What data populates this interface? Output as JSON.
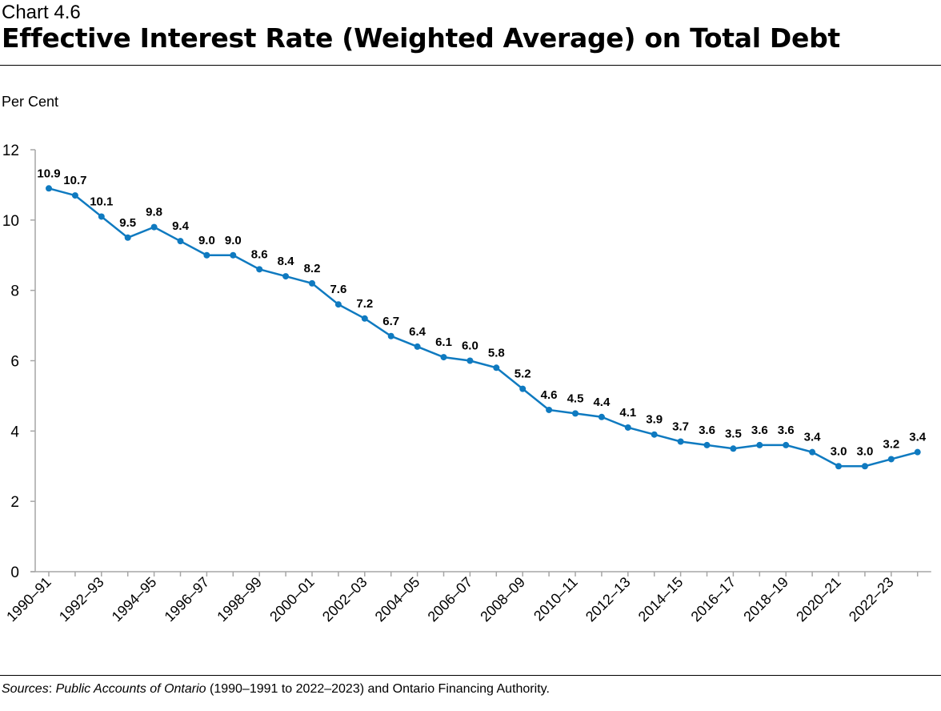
{
  "header": {
    "chart_number": "Chart 4.6",
    "title": "Effective Interest Rate (Weighted Average) on Total Debt"
  },
  "footer": {
    "sources_label": "Sources",
    "sources_text_italic": "Public Accounts of Ontario",
    "sources_text_rest": " (1990–1991 to 2022–2023) and Ontario Financing Authority."
  },
  "chart_data": {
    "type": "line",
    "title": "Effective Interest Rate (Weighted Average) on Total Debt",
    "ylabel": "Per Cent",
    "xlabel": "",
    "ylim": [
      0,
      12
    ],
    "yticks": [
      0,
      2,
      4,
      6,
      8,
      10,
      12
    ],
    "grid": false,
    "color": "#0F7AC0",
    "categories": [
      "1990–91",
      "1991–92",
      "1992–93",
      "1993–94",
      "1994–95",
      "1995–96",
      "1996–97",
      "1997–98",
      "1998–99",
      "1999–00",
      "2000–01",
      "2001–02",
      "2002–03",
      "2003–04",
      "2004–05",
      "2005–06",
      "2006–07",
      "2007–08",
      "2008–09",
      "2009–10",
      "2010–11",
      "2011–12",
      "2012–13",
      "2013–14",
      "2014–15",
      "2015–16",
      "2016–17",
      "2017–18",
      "2018–19",
      "2019–20",
      "2020–21",
      "2021–22",
      "2022–23",
      "2023–24"
    ],
    "tick_labels": [
      "1990–91",
      "1992–93",
      "1994–95",
      "1996–97",
      "1998–99",
      "2000–01",
      "2002–03",
      "2004–05",
      "2006–07",
      "2008–09",
      "2010–11",
      "2012–13",
      "2014–15",
      "2016–17",
      "2018–19",
      "2020–21",
      "2022–23"
    ],
    "values": [
      10.9,
      10.7,
      10.1,
      9.5,
      9.8,
      9.4,
      9.0,
      9.0,
      8.6,
      8.4,
      8.2,
      7.6,
      7.2,
      6.7,
      6.4,
      6.1,
      6.0,
      5.8,
      5.2,
      4.6,
      4.5,
      4.4,
      4.1,
      3.9,
      3.7,
      3.6,
      3.5,
      3.6,
      3.6,
      3.4,
      3.0,
      3.0,
      3.2,
      3.4
    ]
  }
}
